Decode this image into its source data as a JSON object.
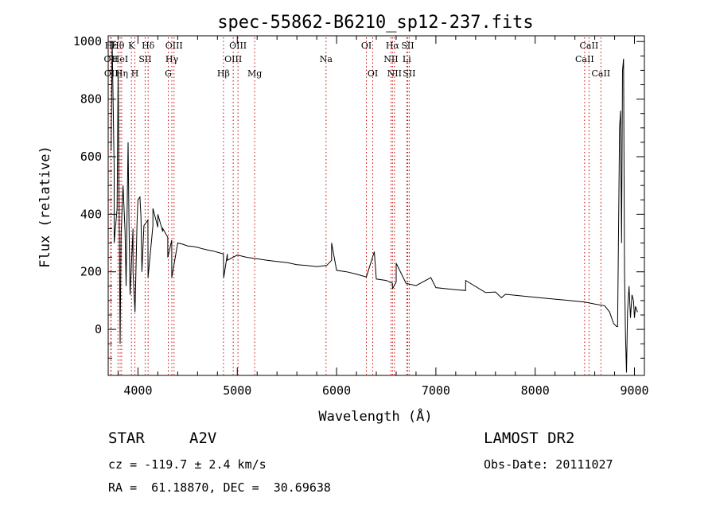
{
  "chart_data": {
    "type": "line",
    "title": "spec-55862-B6210_sp12-237.fits",
    "xlabel": "Wavelength (Å)",
    "ylabel": "Flux (relative)",
    "xlim": [
      3700,
      9100
    ],
    "ylim": [
      -160,
      1020
    ],
    "xticks": [
      4000,
      5000,
      6000,
      7000,
      8000,
      9000
    ],
    "yticks": [
      0,
      200,
      400,
      600,
      800,
      1000
    ],
    "grid": false,
    "line_color": "#000000",
    "marker_color": "#cc0000",
    "spectrum_continuum": [
      [
        3730,
        620
      ],
      [
        3760,
        560
      ],
      [
        3790,
        420
      ],
      [
        3830,
        330
      ],
      [
        3870,
        340
      ],
      [
        3910,
        360
      ],
      [
        3950,
        350
      ],
      [
        3990,
        365
      ],
      [
        4030,
        390
      ],
      [
        4060,
        360
      ],
      [
        4100,
        380
      ],
      [
        4150,
        360
      ],
      [
        4200,
        355
      ],
      [
        4250,
        340
      ],
      [
        4300,
        320
      ],
      [
        4340,
        310
      ],
      [
        4400,
        300
      ],
      [
        4450,
        296
      ],
      [
        4500,
        290
      ],
      [
        4550,
        288
      ],
      [
        4600,
        285
      ],
      [
        4650,
        280
      ],
      [
        4700,
        276
      ],
      [
        4760,
        272
      ],
      [
        4800,
        268
      ],
      [
        4860,
        262
      ],
      [
        4900,
        262
      ],
      [
        5000,
        258
      ],
      [
        5100,
        250
      ],
      [
        5200,
        245
      ],
      [
        5300,
        240
      ],
      [
        5400,
        236
      ],
      [
        5500,
        232
      ],
      [
        5600,
        225
      ],
      [
        5700,
        222
      ],
      [
        5800,
        218
      ],
      [
        5900,
        222
      ],
      [
        5950,
        240
      ],
      [
        6000,
        205
      ],
      [
        6100,
        200
      ],
      [
        6200,
        192
      ],
      [
        6300,
        182
      ],
      [
        6400,
        175
      ],
      [
        6500,
        170
      ],
      [
        6563,
        160
      ],
      [
        6600,
        165
      ],
      [
        6700,
        160
      ],
      [
        6800,
        152
      ],
      [
        7000,
        145
      ],
      [
        7200,
        138
      ],
      [
        7300,
        135
      ],
      [
        7500,
        128
      ],
      [
        7700,
        122
      ],
      [
        7900,
        115
      ],
      [
        8100,
        108
      ],
      [
        8300,
        102
      ],
      [
        8500,
        95
      ],
      [
        8600,
        88
      ],
      [
        8700,
        82
      ],
      [
        8750,
        60
      ],
      [
        8790,
        20
      ],
      [
        8820,
        10
      ]
    ],
    "spectrum_tail": [
      [
        8830,
        10
      ],
      [
        8850,
        700
      ],
      [
        8860,
        760
      ],
      [
        8870,
        300
      ],
      [
        8880,
        900
      ],
      [
        8890,
        940
      ],
      [
        8900,
        200
      ],
      [
        8910,
        -30
      ],
      [
        8920,
        -150
      ],
      [
        8930,
        60
      ],
      [
        8945,
        150
      ],
      [
        8960,
        40
      ],
      [
        8975,
        120
      ],
      [
        8990,
        100
      ],
      [
        9000,
        40
      ],
      [
        9010,
        80
      ],
      [
        9030,
        60
      ]
    ],
    "spectrum_spikes": [
      [
        3740,
        1000
      ],
      [
        3760,
        300
      ],
      [
        3800,
        900
      ],
      [
        3820,
        -50
      ],
      [
        3850,
        500
      ],
      [
        3880,
        150
      ],
      [
        3900,
        650
      ],
      [
        3920,
        120
      ],
      [
        3950,
        200
      ],
      [
        3970,
        60
      ],
      [
        4000,
        450
      ],
      [
        4020,
        460
      ],
      [
        4040,
        200
      ],
      [
        4101,
        180
      ],
      [
        4150,
        420
      ],
      [
        4200,
        400
      ],
      [
        4250,
        350
      ],
      [
        4300,
        250
      ],
      [
        4340,
        180
      ],
      [
        4863,
        180
      ],
      [
        4900,
        240
      ],
      [
        5950,
        300
      ],
      [
        6380,
        270
      ],
      [
        6563,
        140
      ],
      [
        6600,
        230
      ],
      [
        6950,
        180
      ],
      [
        7300,
        170
      ],
      [
        7600,
        130
      ],
      [
        7660,
        110
      ]
    ],
    "line_markers": [
      {
        "label": "Hε",
        "x": 3726,
        "row": 0
      },
      {
        "label": "OII",
        "x": 3727,
        "row": 1
      },
      {
        "label": "OII",
        "x": 3730,
        "row": 2
      },
      {
        "label": "Hθ",
        "x": 3798,
        "row": 0
      },
      {
        "label": "HeI",
        "x": 3820,
        "row": 1
      },
      {
        "label": "Hη",
        "x": 3835,
        "row": 2
      },
      {
        "label": "K",
        "x": 3934,
        "row": 0
      },
      {
        "label": "SII",
        "x": 4072,
        "row": 1
      },
      {
        "label": "H",
        "x": 3969,
        "row": 2
      },
      {
        "label": "Hδ",
        "x": 4102,
        "row": 0
      },
      {
        "label": "OIII",
        "x": 4363,
        "row": 0
      },
      {
        "label": "Hγ",
        "x": 4341,
        "row": 1
      },
      {
        "label": "G",
        "x": 4305,
        "row": 2
      },
      {
        "label": "Hβ",
        "x": 4861,
        "row": 2
      },
      {
        "label": "OIII",
        "x": 5007,
        "row": 0
      },
      {
        "label": "OIII",
        "x": 4959,
        "row": 1
      },
      {
        "label": "Mg",
        "x": 5175,
        "row": 2
      },
      {
        "label": "Na",
        "x": 5894,
        "row": 1
      },
      {
        "label": "OI",
        "x": 6300,
        "row": 0
      },
      {
        "label": "OI",
        "x": 6364,
        "row": 2
      },
      {
        "label": "Hα",
        "x": 6563,
        "row": 0
      },
      {
        "label": "SII",
        "x": 6716,
        "row": 0
      },
      {
        "label": "NII",
        "x": 6548,
        "row": 1
      },
      {
        "label": "NII",
        "x": 6583,
        "row": 2
      },
      {
        "label": "Li",
        "x": 6707,
        "row": 1
      },
      {
        "label": "SII",
        "x": 6731,
        "row": 2
      },
      {
        "label": "CaII",
        "x": 8542,
        "row": 0
      },
      {
        "label": "CaII",
        "x": 8498,
        "row": 1
      },
      {
        "label": "CaII",
        "x": 8662,
        "row": 2
      }
    ]
  },
  "info": {
    "class_label": "STAR",
    "subclass": "A2V",
    "survey": "LAMOST DR2",
    "cz": "cz = -119.7 ± 2.4 km/s",
    "obs_date": "Obs-Date: 20111027",
    "coords": "RA =  61.18870, DEC =  30.69638"
  }
}
